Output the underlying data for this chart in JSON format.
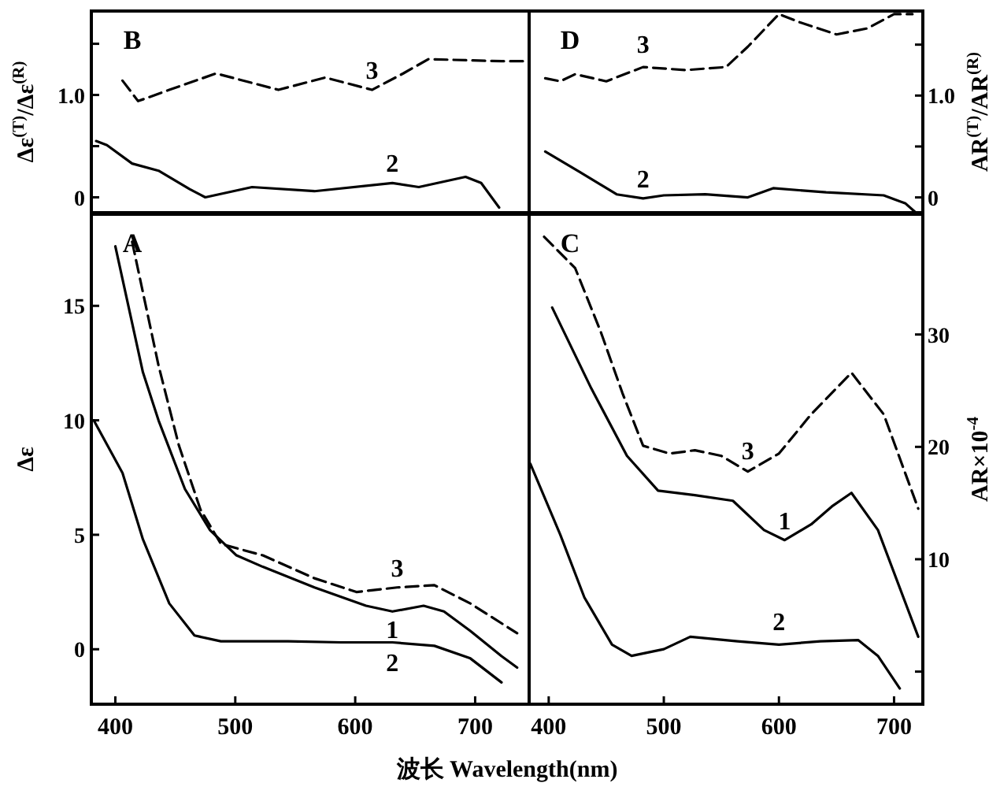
{
  "chart_data": [
    {
      "type": "line",
      "title": "B",
      "ylabel": "Δε$^{(T)}$/Δε$^{(R)}$",
      "xlim": [
        380,
        745
      ],
      "ylim": [
        -0.15,
        1.82
      ],
      "yticks": [
        {
          "value": 0,
          "label": "0"
        },
        {
          "value": 0.5,
          "label": null
        },
        {
          "value": 1,
          "label": "1.0"
        },
        {
          "value": 1.5,
          "label": null
        }
      ],
      "tick_labels": "y",
      "series": [
        {
          "name": "3",
          "color": "#000000",
          "line_style": "dashed",
          "x": [
            406,
            419,
            445,
            484,
            536,
            575,
            614,
            640,
            661,
            722,
            743
          ],
          "values": [
            1.14,
            0.94,
            1.05,
            1.21,
            1.05,
            1.17,
            1.05,
            1.21,
            1.35,
            1.33,
            1.33
          ]
        },
        {
          "name": "2",
          "color": "#000000",
          "line_style": "solid",
          "x": [
            384,
            393,
            414,
            436,
            462,
            475,
            514,
            566,
            631,
            653,
            692,
            705,
            720
          ],
          "values": [
            0.55,
            0.51,
            0.33,
            0.26,
            0.08,
            0.0,
            0.1,
            0.06,
            0.14,
            0.1,
            0.2,
            0.14,
            -0.1
          ]
        }
      ]
    },
    {
      "type": "line",
      "title": "D",
      "y2label": "AR$^{(T)}$/AR$^{(R)}$",
      "xlim": [
        383,
        725
      ],
      "y2lim": [
        -0.15,
        1.83
      ],
      "y2ticks": [
        {
          "value": 0,
          "label": "0"
        },
        {
          "value": 0.5,
          "label": null
        },
        {
          "value": 1,
          "label": "1.0"
        },
        {
          "value": 1.5,
          "label": null
        }
      ],
      "tick_labels": "y2",
      "series": [
        {
          "name": "3",
          "color": "#000000",
          "line_style": "dashed",
          "axis": "y2",
          "x": [
            397,
            410,
            423,
            450,
            482,
            519,
            554,
            573,
            600,
            618,
            650,
            677,
            700,
            716
          ],
          "values": [
            1.17,
            1.14,
            1.21,
            1.14,
            1.28,
            1.25,
            1.28,
            1.48,
            1.8,
            1.72,
            1.6,
            1.66,
            1.8,
            1.8
          ]
        },
        {
          "name": "2",
          "color": "#000000",
          "line_style": "solid",
          "axis": "y2",
          "x": [
            397,
            427,
            459,
            482,
            500,
            536,
            573,
            595,
            641,
            691,
            710,
            718
          ],
          "values": [
            0.45,
            0.25,
            0.03,
            -0.01,
            0.02,
            0.03,
            0.0,
            0.09,
            0.05,
            0.02,
            -0.06,
            -0.14
          ]
        }
      ]
    },
    {
      "type": "line",
      "title": "A",
      "xlabel": "波长 Wavelength(nm)",
      "ylabel": "Δε",
      "xlim": [
        380,
        745
      ],
      "ylim": [
        -2.4,
        19
      ],
      "xticks": [
        400,
        500,
        600,
        700
      ],
      "yticks": [
        0,
        5,
        10,
        15
      ],
      "series": [
        {
          "name": "1",
          "color": "#000000",
          "line_style": "solid",
          "x": [
            400,
            423,
            436,
            458,
            479,
            501,
            523,
            566,
            609,
            631,
            657,
            674,
            696,
            722,
            735
          ],
          "values": [
            17.6,
            12.1,
            10.0,
            7.0,
            5.2,
            4.1,
            3.6,
            2.7,
            1.9,
            1.65,
            1.9,
            1.65,
            0.8,
            -0.3,
            -0.8
          ]
        },
        {
          "name": "2",
          "color": "#000000",
          "line_style": "solid",
          "x": [
            382,
            406,
            423,
            445,
            466,
            488,
            544,
            588,
            631,
            666,
            696,
            722
          ],
          "values": [
            10.0,
            7.7,
            4.8,
            2.0,
            0.6,
            0.35,
            0.35,
            0.3,
            0.3,
            0.15,
            -0.4,
            -1.45
          ]
        },
        {
          "name": "3",
          "color": "#000000",
          "line_style": "dashed",
          "x": [
            414,
            436,
            453,
            471,
            488,
            523,
            566,
            601,
            635,
            666,
            696,
            735
          ],
          "values": [
            17.8,
            12.4,
            8.9,
            6.1,
            4.6,
            4.1,
            3.1,
            2.5,
            2.7,
            2.8,
            2.0,
            0.7
          ]
        }
      ]
    },
    {
      "type": "line",
      "title": "C",
      "y2label": "AR×10$^{-4}$",
      "xlim": [
        383,
        725
      ],
      "y2lim": [
        -2.9,
        40.7
      ],
      "xticks": [
        400,
        500,
        600,
        700
      ],
      "y2ticks": [
        {
          "value": 0,
          "label": null
        },
        10,
        20,
        30
      ],
      "series": [
        {
          "name": "1",
          "color": "#000000",
          "line_style": "solid",
          "axis": "y2",
          "x": [
            403,
            437,
            468,
            495,
            527,
            560,
            587,
            605,
            628,
            646,
            663,
            686,
            721
          ],
          "values": [
            32.4,
            25.2,
            19.2,
            16.1,
            15.7,
            15.2,
            12.6,
            11.7,
            13.1,
            14.7,
            15.9,
            12.6,
            3.1
          ]
        },
        {
          "name": "2",
          "color": "#000000",
          "line_style": "solid",
          "axis": "y2",
          "x": [
            384,
            410,
            431,
            455,
            472,
            500,
            523,
            564,
            600,
            636,
            669,
            686,
            705
          ],
          "values": [
            18.5,
            12.2,
            6.6,
            2.4,
            1.4,
            2.0,
            3.1,
            2.7,
            2.4,
            2.7,
            2.8,
            1.4,
            -1.5
          ]
        },
        {
          "name": "3",
          "color": "#000000",
          "line_style": "dashed",
          "axis": "y2",
          "x": [
            396,
            423,
            445,
            464,
            482,
            505,
            527,
            550,
            573,
            600,
            628,
            663,
            691,
            721
          ],
          "values": [
            38.7,
            35.9,
            30.3,
            24.8,
            20.1,
            19.4,
            19.7,
            19.2,
            17.8,
            19.4,
            22.9,
            26.6,
            22.9,
            14.5
          ]
        }
      ]
    }
  ]
}
